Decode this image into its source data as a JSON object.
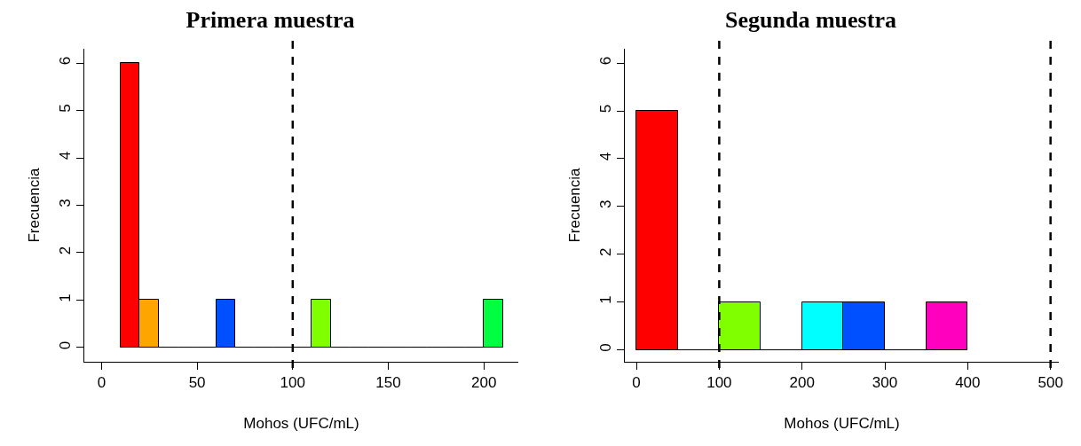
{
  "chart_data": [
    {
      "type": "histogram",
      "title": "Primera muestra",
      "xlabel": "Mohos (UFC/mL)",
      "ylabel": "Frecuencia",
      "bins": [
        10,
        20,
        30,
        40,
        50,
        60,
        70,
        80,
        90,
        100,
        110,
        120,
        130,
        140,
        150,
        160,
        170,
        180,
        190,
        200,
        210
      ],
      "values": [
        6,
        1,
        0,
        0,
        0,
        1,
        0,
        0,
        0,
        0,
        1,
        0,
        0,
        0,
        0,
        0,
        0,
        0,
        0,
        1
      ],
      "colors": [
        "#ff0000",
        "#ffa500",
        null,
        null,
        null,
        "#0050ff",
        null,
        null,
        null,
        null,
        "#80ff00",
        null,
        null,
        null,
        null,
        null,
        null,
        null,
        null,
        "#00ff40"
      ],
      "xlim": [
        -9,
        218
      ],
      "xticks": [
        0,
        50,
        100,
        150,
        200
      ],
      "ylim": [
        -0.3,
        6.3
      ],
      "yticks": [
        0,
        1,
        2,
        3,
        4,
        5,
        6
      ],
      "grid": false,
      "ref_lines": [
        {
          "axis": "x",
          "value": 100,
          "color": "#000000",
          "line_style": "dashed"
        }
      ]
    },
    {
      "type": "histogram",
      "title": "Segunda muestra",
      "xlabel": "Mohos (UFC/mL)",
      "ylabel": "Frecuencia",
      "bins": [
        0,
        50,
        100,
        150,
        200,
        250,
        300,
        350,
        400
      ],
      "values": [
        5,
        0,
        1,
        0,
        1,
        1,
        0,
        1
      ],
      "colors": [
        "#ff0000",
        null,
        "#80ff00",
        null,
        "#00ffff",
        "#0050ff",
        null,
        "#ff00bf"
      ],
      "xlim": [
        -14,
        510
      ],
      "xticks": [
        0,
        100,
        200,
        300,
        400,
        500
      ],
      "ylim": [
        -0.25,
        6.3
      ],
      "yticks": [
        0,
        1,
        2,
        3,
        4,
        5,
        6
      ],
      "grid": false,
      "ref_lines": [
        {
          "axis": "x",
          "value": 100,
          "color": "#000000",
          "line_style": "dashed"
        },
        {
          "axis": "x",
          "value": 500,
          "color": "#000000",
          "line_style": "dashed"
        }
      ]
    }
  ]
}
